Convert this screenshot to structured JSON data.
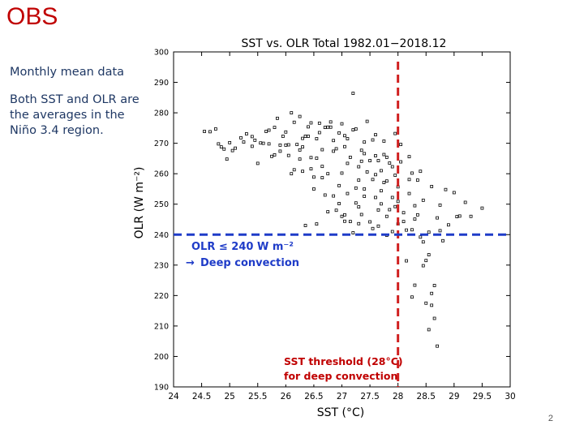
{
  "slide": {
    "title": "OBS",
    "note1": "Monthly mean data",
    "note2": "Both SST and OLR are the averages in the Niño 3.4 region.",
    "page_number": "2"
  },
  "colors": {
    "title": "#c00000",
    "note": "#1f3864",
    "threshold_sst": "#d02020",
    "threshold_olr": "#1f3cc8",
    "points": "#000000"
  },
  "chart_data": {
    "type": "scatter",
    "title": "SST vs. OLR      Total      1982.01−2018.12",
    "xlabel": "SST (°C)",
    "ylabel": "OLR (W m⁻²)",
    "xlim": [
      24,
      30
    ],
    "ylim": [
      190,
      300
    ],
    "xticks": [
      24,
      24.5,
      25,
      25.5,
      26,
      26.5,
      27,
      27.5,
      28,
      28.5,
      29,
      29.5,
      30
    ],
    "xtick_labels": [
      "24",
      "24.5",
      "25",
      "25.5",
      "26",
      "26.5",
      "27",
      "27.5",
      "28",
      "28.5",
      "29",
      "29.5",
      "30"
    ],
    "yticks": [
      190,
      200,
      210,
      220,
      230,
      240,
      250,
      260,
      270,
      280,
      290,
      300
    ],
    "ytick_labels": [
      "190",
      "200",
      "210",
      "220",
      "230",
      "240",
      "250",
      "260",
      "270",
      "280",
      "290",
      "300"
    ],
    "threshold_sst": 28,
    "threshold_olr": 240,
    "annotation_olr_line1": "OLR ≤ 240 W m⁻²",
    "annotation_olr_line2": "Deep convection",
    "annotation_sst_line1": "SST threshold (28°C)",
    "annotation_sst_line2": "for deep convection",
    "points": [
      [
        24.55,
        273.9
      ],
      [
        24.65,
        273.8
      ],
      [
        24.75,
        274.7
      ],
      [
        24.8,
        269.8
      ],
      [
        24.85,
        268.8
      ],
      [
        24.95,
        264.8
      ],
      [
        25.05,
        267.6
      ],
      [
        25.1,
        268.4
      ],
      [
        25.2,
        271.8
      ],
      [
        25.3,
        273.1
      ],
      [
        25.4,
        272.2
      ],
      [
        25.5,
        263.4
      ],
      [
        25.6,
        270.0
      ],
      [
        25.7,
        274.3
      ],
      [
        25.75,
        265.7
      ],
      [
        25.8,
        266.2
      ],
      [
        25.85,
        278.2
      ],
      [
        25.9,
        269.4
      ],
      [
        25.95,
        272.3
      ],
      [
        26.0,
        269.4
      ],
      [
        26.05,
        269.5
      ],
      [
        26.1,
        260.0
      ],
      [
        26.15,
        261.3
      ],
      [
        26.2,
        269.6
      ],
      [
        26.25,
        267.8
      ],
      [
        26.3,
        268.8
      ],
      [
        26.35,
        272.3
      ],
      [
        26.4,
        272.3
      ],
      [
        26.45,
        265.3
      ],
      [
        26.5,
        258.9
      ],
      [
        26.55,
        265.1
      ],
      [
        26.6,
        273.5
      ],
      [
        26.65,
        267.9
      ],
      [
        26.7,
        275.2
      ],
      [
        26.75,
        260.0
      ],
      [
        26.8,
        277.0
      ],
      [
        26.85,
        267.4
      ],
      [
        26.9,
        268.2
      ],
      [
        26.95,
        273.4
      ],
      [
        27.0,
        260.2
      ],
      [
        27.05,
        268.9
      ],
      [
        27.1,
        271.5
      ],
      [
        27.15,
        265.4
      ],
      [
        27.2,
        274.4
      ],
      [
        27.25,
        274.7
      ],
      [
        27.3,
        257.9
      ],
      [
        27.35,
        264.1
      ],
      [
        27.4,
        266.6
      ],
      [
        27.45,
        277.2
      ],
      [
        27.5,
        264.3
      ],
      [
        27.55,
        271.1
      ],
      [
        27.6,
        259.7
      ],
      [
        27.65,
        264.3
      ],
      [
        27.7,
        261.0
      ],
      [
        27.75,
        257.1
      ],
      [
        27.8,
        265.4
      ],
      [
        27.85,
        263.5
      ],
      [
        27.9,
        252.2
      ],
      [
        27.95,
        249.2
      ],
      [
        28.0,
        250.9
      ],
      [
        28.05,
        263.9
      ],
      [
        28.1,
        247.2
      ],
      [
        28.15,
        241.5
      ],
      [
        28.2,
        253.5
      ],
      [
        28.25,
        241.6
      ],
      [
        28.3,
        245.1
      ],
      [
        28.35,
        246.5
      ],
      [
        28.4,
        239.2
      ],
      [
        28.45,
        237.6
      ],
      [
        28.5,
        231.5
      ],
      [
        28.55,
        233.4
      ],
      [
        28.6,
        220.7
      ],
      [
        28.65,
        223.3
      ],
      [
        28.7,
        245.5
      ],
      [
        28.75,
        241.3
      ],
      [
        28.8,
        238.0
      ],
      [
        28.85,
        254.8
      ],
      [
        29.0,
        253.8
      ],
      [
        29.1,
        246.1
      ],
      [
        29.2,
        250.6
      ],
      [
        29.3,
        246.0
      ],
      [
        29.5,
        248.7
      ],
      [
        28.3,
        223.4
      ],
      [
        28.5,
        217.5
      ],
      [
        28.65,
        212.5
      ],
      [
        28.45,
        229.8
      ],
      [
        28.55,
        208.8
      ],
      [
        28.7,
        203.4
      ],
      [
        28.6,
        216.8
      ],
      [
        28.25,
        219.5
      ],
      [
        26.35,
        243.0
      ],
      [
        26.55,
        243.5
      ],
      [
        26.75,
        247.5
      ],
      [
        27.0,
        246.0
      ],
      [
        27.15,
        244.3
      ],
      [
        27.3,
        243.6
      ],
      [
        27.5,
        244.2
      ],
      [
        27.65,
        242.8
      ],
      [
        27.8,
        239.8
      ],
      [
        27.9,
        241.0
      ],
      [
        27.55,
        242.0
      ],
      [
        27.2,
        240.6
      ],
      [
        27.05,
        244.4
      ],
      [
        26.95,
        250.2
      ],
      [
        26.85,
        252.7
      ],
      [
        27.25,
        255.3
      ],
      [
        27.4,
        252.6
      ],
      [
        27.6,
        252.2
      ],
      [
        27.7,
        254.4
      ],
      [
        27.85,
        248.2
      ],
      [
        28.0,
        243.5
      ],
      [
        28.1,
        244.3
      ],
      [
        28.35,
        257.9
      ],
      [
        28.55,
        240.8
      ],
      [
        28.15,
        231.4
      ],
      [
        27.45,
        260.6
      ],
      [
        27.75,
        266.3
      ],
      [
        27.2,
        286.4
      ],
      [
        26.1,
        280.0
      ],
      [
        26.25,
        278.8
      ],
      [
        26.45,
        276.7
      ],
      [
        26.6,
        276.6
      ],
      [
        26.8,
        275.3
      ],
      [
        27.0,
        276.4
      ],
      [
        27.4,
        270.4
      ],
      [
        27.6,
        272.8
      ],
      [
        27.75,
        270.7
      ],
      [
        27.95,
        273.2
      ],
      [
        28.05,
        269.6
      ],
      [
        28.2,
        265.6
      ],
      [
        28.25,
        260.2
      ],
      [
        28.4,
        260.8
      ],
      [
        28.6,
        255.8
      ],
      [
        28.75,
        249.7
      ],
      [
        28.9,
        243.2
      ],
      [
        29.05,
        245.9
      ],
      [
        27.3,
        249.1
      ],
      [
        27.1,
        253.5
      ],
      [
        26.95,
        256.1
      ],
      [
        26.65,
        258.7
      ],
      [
        26.45,
        261.6
      ],
      [
        26.25,
        264.8
      ],
      [
        26.05,
        266.0
      ],
      [
        25.9,
        267.4
      ],
      [
        25.7,
        269.8
      ],
      [
        25.55,
        270.1
      ],
      [
        25.4,
        269.0
      ],
      [
        25.25,
        270.4
      ],
      [
        25.0,
        270.2
      ],
      [
        24.9,
        268.1
      ],
      [
        26.3,
        260.8
      ],
      [
        26.5,
        255.0
      ],
      [
        26.7,
        253.0
      ],
      [
        26.9,
        248.0
      ],
      [
        27.05,
        246.5
      ],
      [
        27.35,
        246.6
      ],
      [
        27.65,
        248.1
      ],
      [
        27.8,
        246.0
      ],
      [
        28.3,
        249.5
      ],
      [
        28.45,
        251.3
      ],
      [
        28.2,
        258.1
      ],
      [
        27.95,
        259.5
      ],
      [
        26.15,
        276.9
      ],
      [
        26.4,
        275.4
      ],
      [
        26.55,
        271.5
      ],
      [
        26.85,
        270.9
      ],
      [
        27.1,
        263.4
      ],
      [
        27.3,
        262.3
      ],
      [
        27.55,
        258.1
      ],
      [
        27.7,
        250.1
      ],
      [
        26.75,
        275.3
      ],
      [
        27.05,
        272.5
      ],
      [
        27.35,
        267.7
      ],
      [
        27.6,
        265.9
      ],
      [
        27.9,
        262.3
      ],
      [
        28.0,
        255.7
      ],
      [
        27.8,
        257.6
      ],
      [
        27.4,
        255.0
      ],
      [
        27.25,
        250.4
      ],
      [
        26.65,
        262.4
      ],
      [
        26.3,
        271.6
      ],
      [
        26.0,
        273.7
      ],
      [
        25.8,
        275.2
      ],
      [
        25.65,
        273.9
      ],
      [
        25.45,
        271.0
      ]
    ]
  }
}
